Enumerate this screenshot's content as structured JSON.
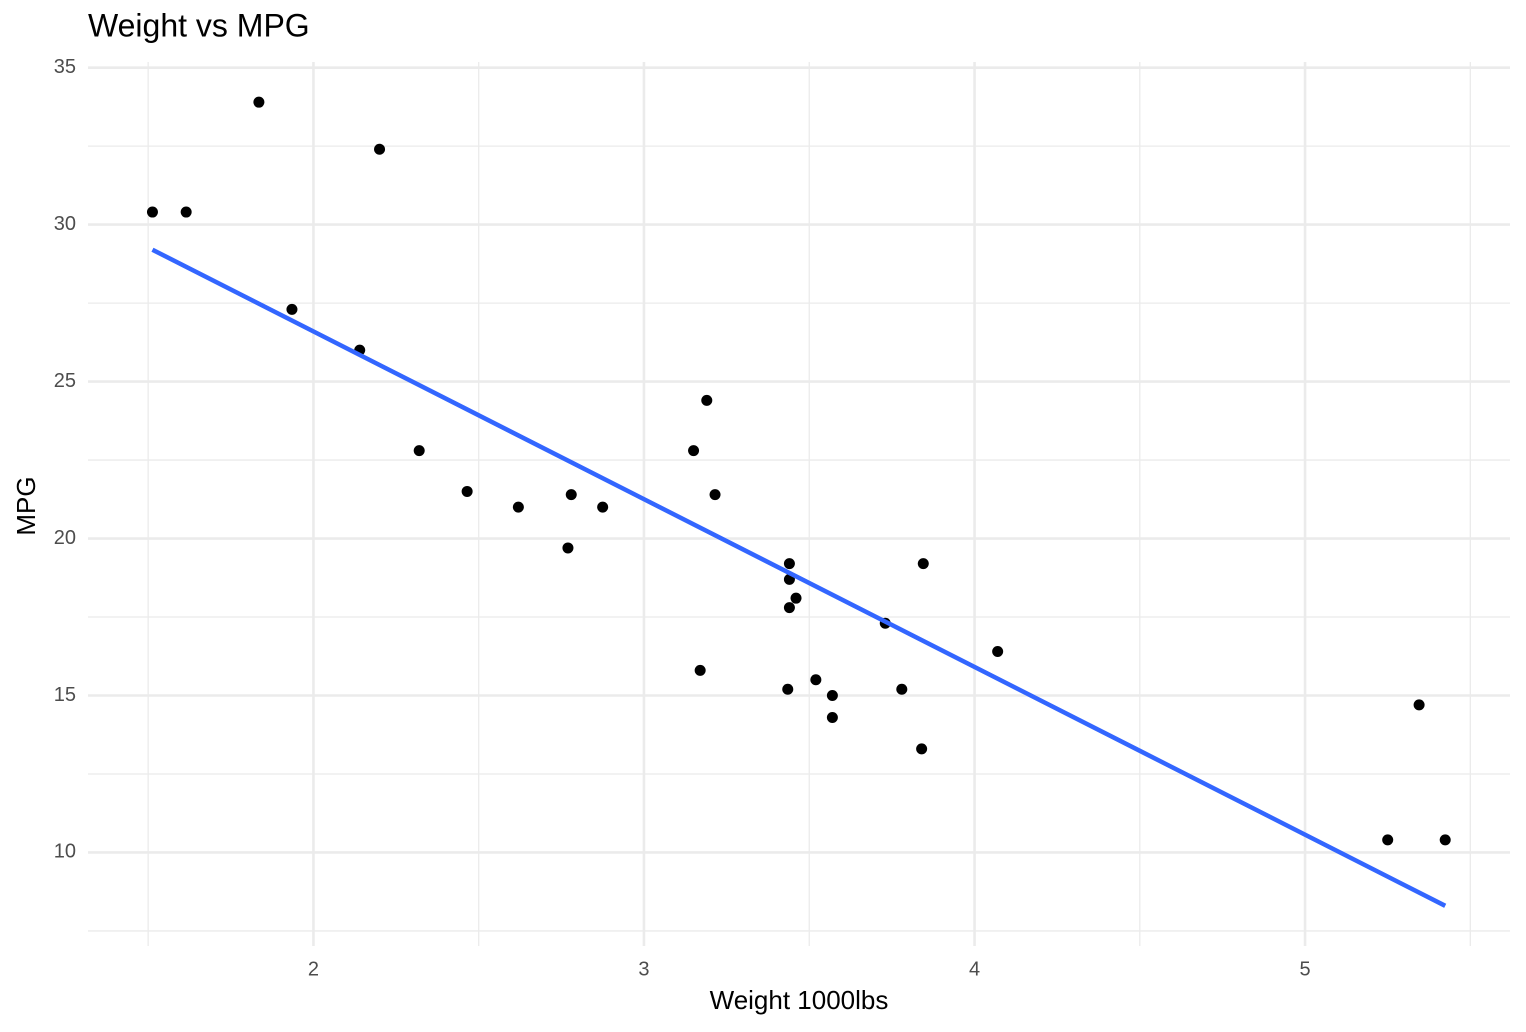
{
  "chart_data": {
    "type": "scatter",
    "title": "Weight vs MPG",
    "x_label": "Weight 1000lbs",
    "y_label": "MPG",
    "x": [
      2.62,
      2.875,
      2.32,
      3.215,
      3.44,
      3.46,
      3.57,
      3.19,
      3.15,
      3.44,
      3.44,
      4.07,
      3.73,
      3.78,
      5.25,
      5.424,
      5.345,
      2.2,
      1.615,
      1.835,
      2.465,
      3.52,
      3.435,
      3.84,
      3.845,
      1.935,
      2.14,
      1.513,
      3.17,
      2.77,
      3.57,
      2.78
    ],
    "values": [
      21.0,
      21.0,
      22.8,
      21.4,
      18.7,
      18.1,
      14.3,
      24.4,
      22.8,
      19.2,
      17.8,
      16.4,
      17.3,
      15.2,
      10.4,
      10.4,
      14.7,
      32.4,
      30.4,
      33.9,
      21.5,
      15.5,
      15.2,
      13.3,
      19.2,
      27.3,
      26.0,
      30.4,
      15.8,
      19.7,
      15.0,
      21.4
    ],
    "color": "#000000",
    "trend_line": {
      "x": [
        1.513,
        5.424
      ],
      "values": [
        29.2,
        8.3
      ],
      "color": "#3366ff"
    },
    "xlim": [
      1.318,
      5.62
    ],
    "ylim": [
      7.02,
      35.18
    ],
    "xticks": [
      2,
      3,
      4,
      5
    ],
    "yticks": [
      10,
      15,
      20,
      25,
      30,
      35
    ],
    "x_minor_ticks": [
      1.5,
      2.5,
      3.5,
      4.5,
      5.5
    ],
    "y_minor_ticks": [
      7.5,
      12.5,
      17.5,
      22.5,
      27.5,
      32.5
    ],
    "grid": true
  }
}
